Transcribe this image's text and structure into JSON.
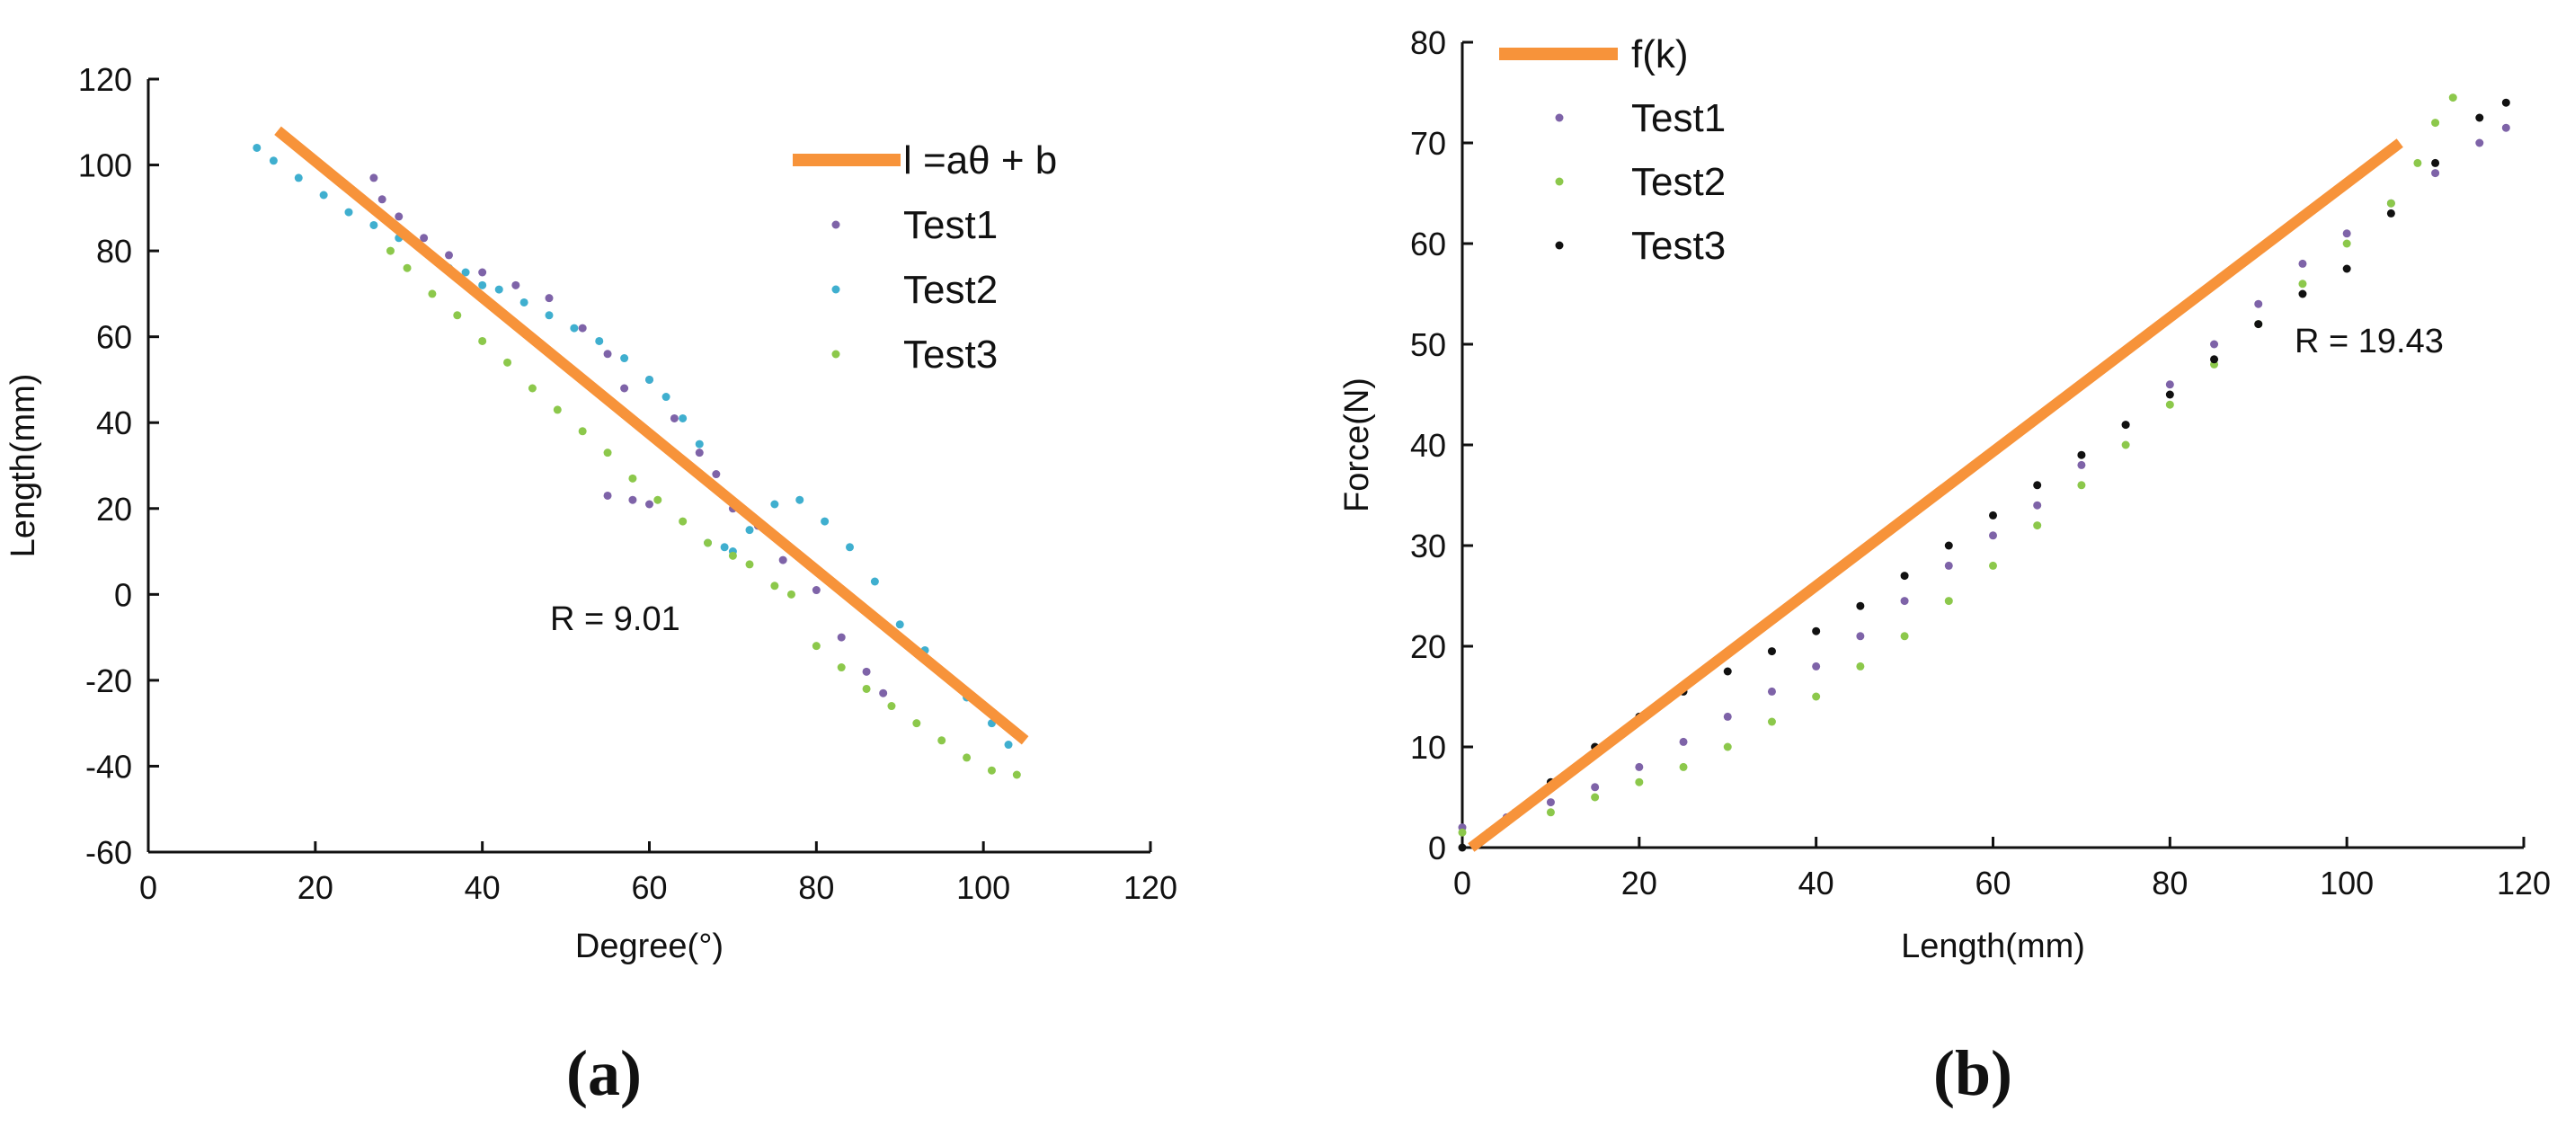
{
  "chart_data": [
    {
      "id": "a",
      "type": "scatter",
      "panel_label": "(a)",
      "xlabel": "Degree(°)",
      "ylabel": "Length(mm)",
      "xlim": [
        0,
        120
      ],
      "ylim": [
        -60,
        120
      ],
      "xticks": [
        0,
        20,
        40,
        60,
        80,
        100,
        120
      ],
      "yticks": [
        -60,
        -40,
        -20,
        0,
        20,
        40,
        60,
        80,
        100,
        120
      ],
      "annotation": "R = 9.01",
      "legend_position": "top-right",
      "fit": {
        "name": "l =aθ + b",
        "color": "#F7933A",
        "x": [
          15.5,
          105
        ],
        "y": [
          108,
          -34
        ]
      },
      "series": [
        {
          "name": "Test1",
          "color": "#7E63A8",
          "x": [
            27,
            28,
            30,
            33,
            36,
            40,
            44,
            48,
            52,
            55,
            57,
            60,
            63,
            66,
            68,
            70,
            73,
            76,
            80,
            83,
            86,
            88
          ],
          "y": [
            97,
            92,
            88,
            83,
            79,
            75,
            72,
            69,
            62,
            56,
            48,
            50,
            41,
            33,
            28,
            20,
            16,
            8,
            1,
            -10,
            -18,
            -23
          ],
          "extra": [
            [
              55,
              23
            ],
            [
              58,
              22
            ],
            [
              60,
              21
            ]
          ]
        },
        {
          "name": "Test2",
          "color": "#3FAFCF",
          "x": [
            13,
            15,
            18,
            21,
            24,
            27,
            30,
            33,
            36,
            38,
            40,
            42,
            45,
            48,
            51,
            54,
            57,
            60,
            62,
            64,
            66,
            67,
            69,
            70,
            72,
            75,
            78,
            81,
            84,
            87,
            90,
            93,
            95,
            98,
            101,
            103
          ],
          "y": [
            104,
            101,
            97,
            93,
            89,
            86,
            83,
            80,
            76,
            75,
            72,
            71,
            68,
            65,
            62,
            59,
            55,
            50,
            46,
            41,
            35,
            12,
            11,
            10,
            15,
            21,
            22,
            17,
            11,
            3,
            -7,
            -13,
            -18,
            -24,
            -30,
            -35
          ]
        },
        {
          "name": "Test3",
          "color": "#8CC84B",
          "x": [
            29,
            31,
            34,
            37,
            40,
            43,
            46,
            49,
            52,
            55,
            58,
            61,
            64,
            67,
            70,
            72,
            75,
            77,
            80,
            83,
            86,
            89,
            92,
            95,
            98,
            101,
            104
          ],
          "y": [
            80,
            76,
            70,
            65,
            59,
            54,
            48,
            43,
            38,
            33,
            27,
            22,
            17,
            12,
            9,
            7,
            2,
            0,
            -12,
            -17,
            -22,
            -26,
            -30,
            -34,
            -38,
            -41,
            -42
          ]
        }
      ]
    },
    {
      "id": "b",
      "type": "scatter",
      "panel_label": "(b)",
      "xlabel": "Length(mm)",
      "ylabel": "Force(N)",
      "xlim": [
        0,
        120
      ],
      "ylim": [
        0,
        80
      ],
      "xticks": [
        0,
        20,
        40,
        60,
        80,
        100,
        120
      ],
      "yticks": [
        0,
        10,
        20,
        30,
        40,
        50,
        60,
        70,
        80
      ],
      "annotation": "R = 19.43",
      "legend_position": "top-left",
      "fit": {
        "name": "f(k)",
        "color": "#F7933A",
        "x": [
          1,
          106
        ],
        "y": [
          0,
          70
        ]
      },
      "series": [
        {
          "name": "Test1",
          "color": "#7E63A8",
          "x": [
            0,
            5,
            10,
            15,
            20,
            25,
            30,
            35,
            40,
            45,
            50,
            55,
            60,
            65,
            70,
            75,
            80,
            85,
            90,
            95,
            100,
            105,
            110,
            115,
            118
          ],
          "y": [
            2,
            3,
            4.5,
            6,
            8,
            10.5,
            13,
            15.5,
            18,
            21,
            24.5,
            28,
            31,
            34,
            38,
            42,
            46,
            50,
            54,
            58,
            61,
            64,
            67,
            70,
            71.5
          ]
        },
        {
          "name": "Test2",
          "color": "#8CC84B",
          "x": [
            0,
            5,
            10,
            15,
            20,
            25,
            30,
            35,
            40,
            45,
            50,
            55,
            60,
            65,
            70,
            75,
            80,
            85,
            90,
            95,
            100,
            105,
            108,
            110,
            112
          ],
          "y": [
            1.5,
            2.5,
            3.5,
            5,
            6.5,
            8,
            10,
            12.5,
            15,
            18,
            21,
            24.5,
            28,
            32,
            36,
            40,
            44,
            48,
            52,
            56,
            60,
            64,
            68,
            72,
            74.5
          ]
        },
        {
          "name": "Test3",
          "color": "#111111",
          "x": [
            0,
            3,
            6,
            10,
            15,
            20,
            25,
            30,
            35,
            40,
            45,
            50,
            55,
            60,
            65,
            70,
            75,
            80,
            85,
            90,
            95,
            100,
            105,
            110,
            115,
            118
          ],
          "y": [
            0,
            1.5,
            3.5,
            6.5,
            10,
            13,
            15.5,
            17.5,
            19.5,
            21.5,
            24,
            27,
            30,
            33,
            36,
            39,
            42,
            45,
            48.5,
            52,
            55,
            57.5,
            63,
            68,
            72.5,
            74
          ]
        }
      ]
    }
  ]
}
